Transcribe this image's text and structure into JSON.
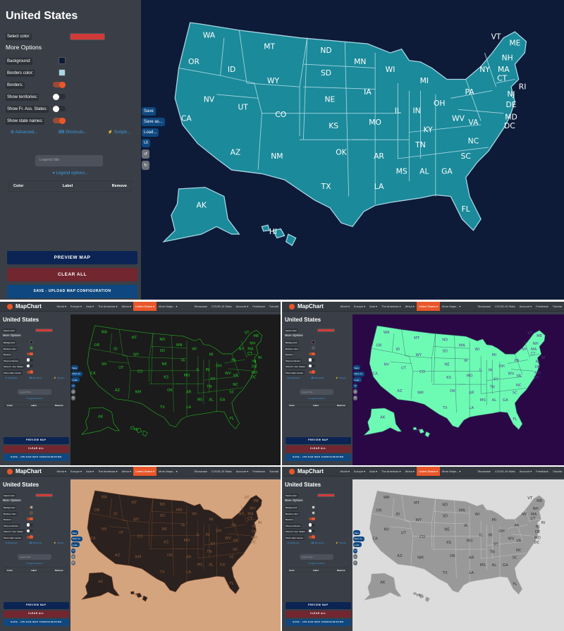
{
  "app": {
    "name": "MapChart"
  },
  "nav": {
    "items": [
      "World ▾",
      "Europe ▾",
      "Asia ▾",
      "The Americas ▾",
      "Africa ▾",
      "United States ▾",
      "More Maps... ▾",
      "Showcase",
      "COVID-19 Stats",
      "Account ▾",
      "Feedback",
      "Tutorial"
    ],
    "active": "United States ▾"
  },
  "sidebar": {
    "title": "United States",
    "select_color_label": "Select color:",
    "select_color": "#d23a3a",
    "more_options": "More Options",
    "background_label": "Background:",
    "borders_color_label": "Borders color:",
    "borders_label": "Borders:",
    "territories_label": "Show territories:",
    "fas_label": "Show Fr. Ass. States:",
    "state_names_label": "Show state names:",
    "advanced": "⚙ Advanced...",
    "shortcuts": "⌨ Shortcuts...",
    "scripts": "⚡ Scripts...",
    "legend_placeholder": "Legend title",
    "legend_options": "▾ Legend options...",
    "legend_cols": {
      "color": "Color",
      "label": "Label",
      "remove": "Remove"
    },
    "preview": "PREVIEW MAP",
    "clear": "CLEAR ALL",
    "save_upload": "SAVE - UPLOAD MAP CONFIGURATION"
  },
  "toolbar": {
    "save": "Save",
    "save_as": "Save as...",
    "load": "Load...",
    "ui": "UI",
    "undo": "↺",
    "redo": "↻"
  },
  "toggles": {
    "borders": true,
    "territories": false,
    "fas": false,
    "state_names": true
  },
  "themes": [
    {
      "id": "navy",
      "background": "#0d1b38",
      "fill": "#1b8a9a",
      "border": "#a9d6e5",
      "label": "#ffffff"
    },
    {
      "id": "dark-green",
      "background": "#1b1b1b",
      "fill": "#1b1b1b",
      "border": "#1fae1f",
      "label": "#22c622"
    },
    {
      "id": "purple-mint",
      "background": "#2a0845",
      "fill": "#6dfbb4",
      "border": "#3a5f6a",
      "label": "#5a3a8a"
    },
    {
      "id": "tan-brown",
      "background": "#d4a47f",
      "fill": "#2b211e",
      "border": "#7a4a2e",
      "label": "#8a5a3a"
    },
    {
      "id": "gray",
      "background": "#dcdcdc",
      "fill": "#999999",
      "border": "#cfcfcf",
      "label": "#333333"
    }
  ],
  "states": [
    [
      "WA",
      80,
      40
    ],
    [
      "OR",
      60,
      75
    ],
    [
      "CA",
      50,
      150
    ],
    [
      "NV",
      80,
      125
    ],
    [
      "ID",
      110,
      85
    ],
    [
      "MT",
      160,
      55
    ],
    [
      "WY",
      165,
      100
    ],
    [
      "UT",
      125,
      135
    ],
    [
      "CO",
      175,
      145
    ],
    [
      "AZ",
      115,
      195
    ],
    [
      "NM",
      170,
      200
    ],
    [
      "ND",
      235,
      60
    ],
    [
      "SD",
      235,
      90
    ],
    [
      "NE",
      240,
      125
    ],
    [
      "KS",
      245,
      160
    ],
    [
      "OK",
      255,
      195
    ],
    [
      "TX",
      235,
      240
    ],
    [
      "MN",
      280,
      75
    ],
    [
      "IA",
      290,
      115
    ],
    [
      "MO",
      300,
      155
    ],
    [
      "AR",
      305,
      200
    ],
    [
      "LA",
      305,
      240
    ],
    [
      "WI",
      320,
      85
    ],
    [
      "IL",
      330,
      140
    ],
    [
      "MI",
      365,
      100
    ],
    [
      "IN",
      355,
      140
    ],
    [
      "OH",
      385,
      130
    ],
    [
      "KY",
      370,
      165
    ],
    [
      "TN",
      360,
      185
    ],
    [
      "MS",
      335,
      220
    ],
    [
      "AL",
      365,
      220
    ],
    [
      "GA",
      395,
      220
    ],
    [
      "FL",
      420,
      270
    ],
    [
      "SC",
      420,
      200
    ],
    [
      "NC",
      430,
      180
    ],
    [
      "VA",
      430,
      155
    ],
    [
      "WV",
      410,
      150
    ],
    [
      "PA",
      425,
      115
    ],
    [
      "NY",
      445,
      85
    ],
    [
      "ME",
      485,
      50
    ],
    [
      "VT",
      460,
      42
    ],
    [
      "NH",
      475,
      70
    ],
    [
      "MA",
      470,
      85
    ],
    [
      "CT",
      468,
      97
    ],
    [
      "RI",
      495,
      108
    ],
    [
      "NJ",
      480,
      118
    ],
    [
      "DE",
      480,
      132
    ],
    [
      "MD",
      480,
      148
    ],
    [
      "DC",
      478,
      160
    ],
    [
      "AK",
      70,
      265
    ],
    [
      "HI",
      165,
      300
    ]
  ]
}
